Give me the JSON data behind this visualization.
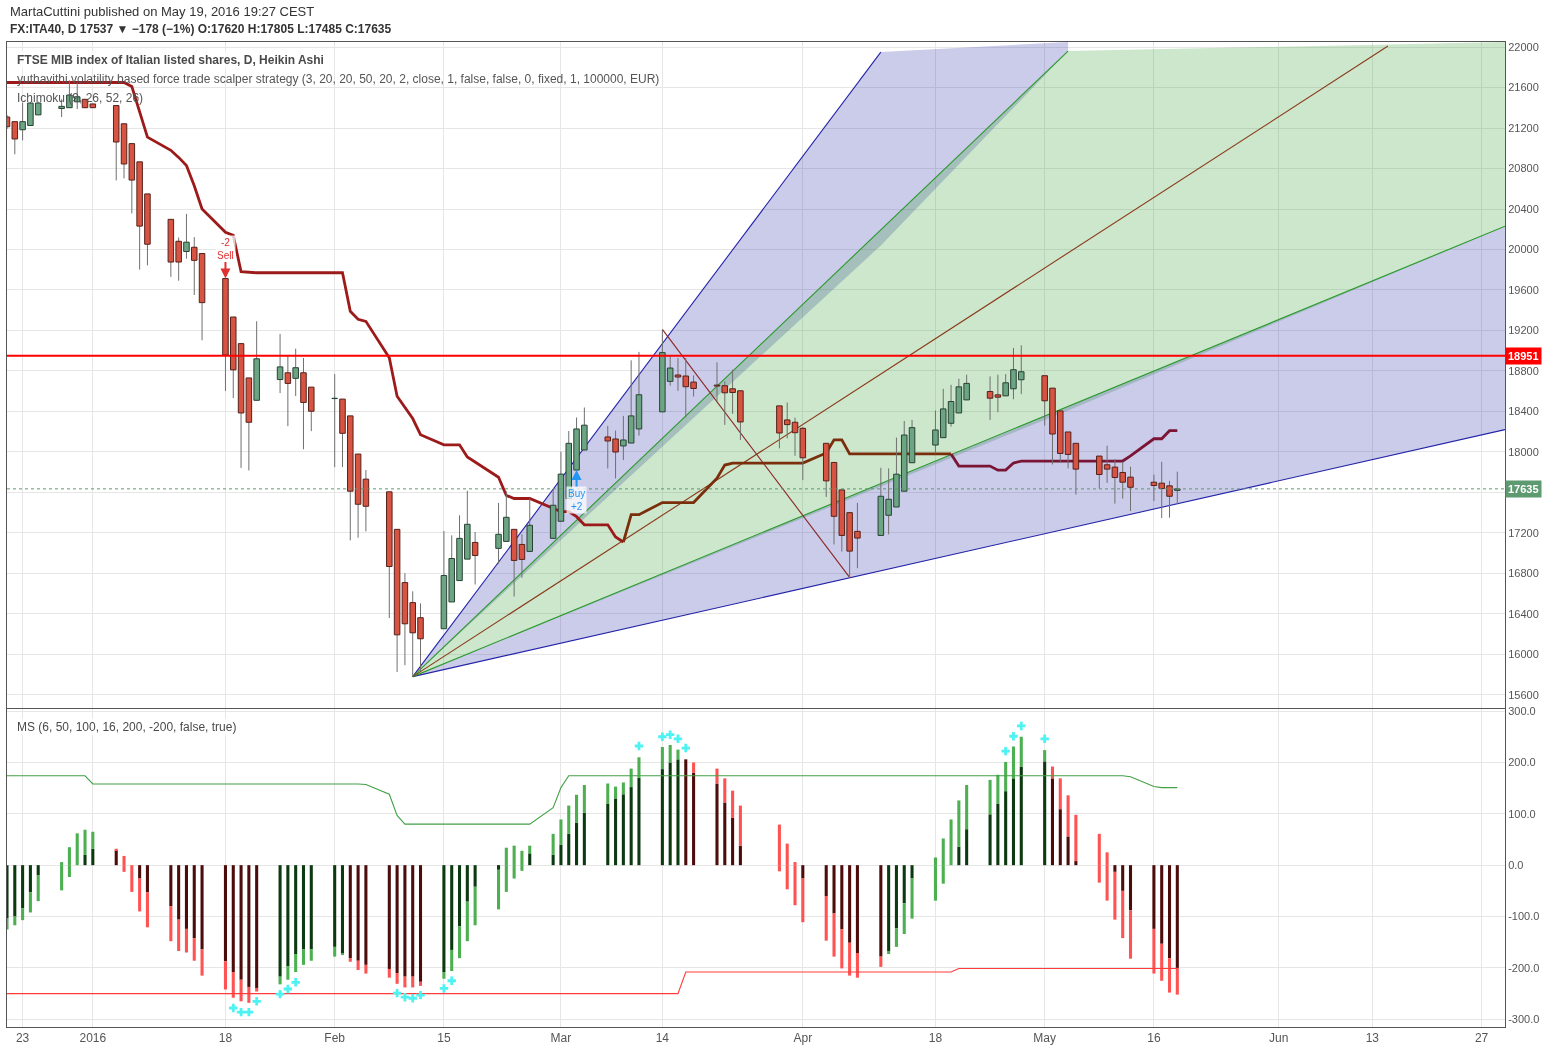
{
  "chart_data": [
    {
      "type": "candlestick",
      "title": "FTSE MIB index of Italian listed shares, D, Heikin Ashi",
      "subtitle": "FX:ITA40, D 17537 ▼ −178 (−1%) O:17620 H:17805 L:17485 C:17635",
      "annotations": [
        "MartaCuttini published on May 19, 2016 19:27 CEST",
        "yuthavithi volatility based force trade scalper strategy (3, 20, 20, 50, 20, 2, close, 1, false, false, 0, fixed, 1, 100000, EUR)",
        "Ichimoku (9, 26, 52, 26)",
        {
          "text": "-2\nSell",
          "x": "2016-01-18",
          "y": 19713
        },
        {
          "text": "Buy\n+2",
          "x": "2016-03-03",
          "y": 17821
        }
      ],
      "x": [
        "2015-12-21",
        "2015-12-22",
        "2015-12-23",
        "2015-12-24",
        "2015-12-25",
        "2015-12-28",
        "2015-12-29",
        "2015-12-30",
        "2015-12-31",
        "2016-01-01",
        "2016-01-04",
        "2016-01-05",
        "2016-01-06",
        "2016-01-07",
        "2016-01-08",
        "2016-01-11",
        "2016-01-12",
        "2016-01-13",
        "2016-01-14",
        "2016-01-15",
        "2016-01-18",
        "2016-01-19",
        "2016-01-20",
        "2016-01-21",
        "2016-01-22",
        "2016-01-25",
        "2016-01-26",
        "2016-01-27",
        "2016-01-28",
        "2016-01-29",
        "2016-02-01",
        "2016-02-02",
        "2016-02-03",
        "2016-02-04",
        "2016-02-05",
        "2016-02-08",
        "2016-02-09",
        "2016-02-10",
        "2016-02-11",
        "2016-02-12",
        "2016-02-15",
        "2016-02-16",
        "2016-02-17",
        "2016-02-18",
        "2016-02-19",
        "2016-02-22",
        "2016-02-23",
        "2016-02-24",
        "2016-02-25",
        "2016-02-26",
        "2016-02-29",
        "2016-03-01",
        "2016-03-02",
        "2016-03-03",
        "2016-03-04",
        "2016-03-07",
        "2016-03-08",
        "2016-03-09",
        "2016-03-10",
        "2016-03-11",
        "2016-03-14",
        "2016-03-15",
        "2016-03-16",
        "2016-03-17",
        "2016-03-18",
        "2016-03-21",
        "2016-03-22",
        "2016-03-23",
        "2016-03-24",
        "2016-03-29",
        "2016-03-30",
        "2016-03-31",
        "2016-04-01",
        "2016-04-04",
        "2016-04-05",
        "2016-04-06",
        "2016-04-07",
        "2016-04-08",
        "2016-04-11",
        "2016-04-12",
        "2016-04-13",
        "2016-04-14",
        "2016-04-15",
        "2016-04-18",
        "2016-04-19",
        "2016-04-20",
        "2016-04-21",
        "2016-04-22",
        "2016-04-25",
        "2016-04-26",
        "2016-04-27",
        "2016-04-28",
        "2016-04-29",
        "2016-05-02",
        "2016-05-03",
        "2016-05-04",
        "2016-05-05",
        "2016-05-06",
        "2016-05-09",
        "2016-05-10",
        "2016-05-11",
        "2016-05-12",
        "2016-05-13",
        "2016-05-16",
        "2016-05-17",
        "2016-05-18",
        "2016-05-19"
      ],
      "ohlc": [
        [
          21309,
          21330,
          21190,
          21213
        ],
        [
          21263,
          21263,
          20941,
          21092
        ],
        [
          21183,
          21451,
          21079,
          21263
        ],
        [
          21225,
          21460,
          21225,
          21447
        ],
        [
          21330,
          21460,
          21330,
          21447
        ],
        [
          21393,
          21484,
          21309,
          21414
        ],
        [
          21401,
          21672,
          21401,
          21526
        ],
        [
          21459,
          21651,
          21388,
          21509
        ],
        [
          21484,
          21484,
          21401,
          21401
        ],
        [
          21438,
          21438,
          21401,
          21401
        ],
        [
          21422,
          21422,
          20682,
          21062
        ],
        [
          21242,
          21242,
          20703,
          20845
        ],
        [
          21046,
          21046,
          20356,
          20686
        ],
        [
          20866,
          20866,
          19801,
          20231
        ],
        [
          20549,
          20549,
          19843,
          20052
        ],
        [
          20298,
          20298,
          19730,
          19876
        ],
        [
          20081,
          20118,
          19692,
          19876
        ],
        [
          19980,
          20352,
          19909,
          20072
        ],
        [
          20022,
          20122,
          19550,
          19893
        ],
        [
          19960,
          19960,
          19103,
          19475
        ],
        [
          19713,
          19713,
          18602,
          18957
        ],
        [
          19333,
          19333,
          18531,
          18811
        ],
        [
          19070,
          19070,
          17842,
          18385
        ],
        [
          18731,
          18731,
          17817,
          18293
        ],
        [
          18510,
          19291,
          18510,
          18920
        ],
        [
          18715,
          19166,
          18581,
          18840
        ],
        [
          18782,
          18957,
          18255,
          18677
        ],
        [
          18727,
          19020,
          18552,
          18832
        ],
        [
          18782,
          18928,
          18026,
          18489
        ],
        [
          18640,
          18640,
          18205,
          18402
        ],
        [
          18527,
          18769,
          17850,
          18530
        ],
        [
          18522,
          18522,
          17850,
          18184
        ],
        [
          18356,
          18356,
          17126,
          17612
        ],
        [
          17979,
          17979,
          17152,
          17483
        ],
        [
          17731,
          17821,
          17215,
          17463
        ],
        [
          17606,
          17606,
          16359,
          16868
        ],
        [
          17235,
          17235,
          15826,
          16193
        ],
        [
          16709,
          16802,
          15893,
          16302
        ],
        [
          16511,
          16623,
          15780,
          16213
        ],
        [
          16362,
          16504,
          15836,
          16154
        ],
        [
          16253,
          17219,
          16253,
          16779
        ],
        [
          16518,
          17176,
          16518,
          16947
        ],
        [
          16729,
          17374,
          16729,
          17146
        ],
        [
          16941,
          17616,
          16941,
          17285
        ],
        [
          17106,
          17209,
          16690,
          16977
        ],
        [
          17047,
          17496,
          16895,
          17186
        ],
        [
          17116,
          17612,
          17116,
          17354
        ],
        [
          17235,
          17235,
          16571,
          16928
        ],
        [
          17086,
          17186,
          16756,
          16938
        ],
        [
          17017,
          17539,
          17017,
          17275
        ],
        [
          17146,
          17629,
          17146,
          17473
        ],
        [
          17315,
          18003,
          17315,
          17781
        ],
        [
          17539,
          18207,
          17539,
          18085
        ],
        [
          17821,
          18340,
          17821,
          18227
        ],
        [
          18019,
          18439,
          18019,
          18264
        ],
        [
          18148,
          18257,
          17837,
          18108
        ],
        [
          18128,
          18211,
          17738,
          17999
        ],
        [
          18059,
          18356,
          17920,
          18118
        ],
        [
          18088,
          18905,
          18088,
          18356
        ],
        [
          18227,
          18988,
          18161,
          18565
        ],
        [
          18396,
          19209,
          18396,
          18981
        ],
        [
          18697,
          18955,
          18654,
          18829
        ],
        [
          18760,
          18928,
          18604,
          18740
        ],
        [
          18750,
          18928,
          18340,
          18644
        ],
        [
          18690,
          18756,
          18548,
          18627
        ],
        [
          18660,
          18885,
          18498,
          18651
        ],
        [
          18654,
          18697,
          18267,
          18584
        ],
        [
          18624,
          18813,
          18376,
          18587
        ],
        [
          18604,
          18604,
          18118,
          18296
        ],
        [
          18455,
          18455,
          18035,
          18187
        ],
        [
          18316,
          18488,
          18134,
          18270
        ],
        [
          18293,
          18339,
          17962,
          18190
        ],
        [
          18233,
          18247,
          17721,
          17942
        ],
        [
          18085,
          18085,
          17555,
          17714
        ],
        [
          17896,
          17896,
          17086,
          17364
        ],
        [
          17625,
          17625,
          17016,
          17175
        ],
        [
          17400,
          17400,
          16758,
          17020
        ],
        [
          17215,
          17496,
          16851,
          17149
        ],
        [
          17175,
          17843,
          17175,
          17562
        ],
        [
          17374,
          17837,
          17185,
          17532
        ],
        [
          17456,
          18141,
          17456,
          17780
        ],
        [
          17612,
          18306,
          17612,
          18167
        ],
        [
          17893,
          18316,
          17893,
          18240
        ],
        [
          18068,
          18409,
          17985,
          18217
        ],
        [
          18141,
          18624,
          18141,
          18425
        ],
        [
          18283,
          18663,
          18250,
          18498
        ],
        [
          18385,
          18723,
          18385,
          18643
        ],
        [
          18514,
          18763,
          18514,
          18677
        ],
        [
          18597,
          18746,
          18316,
          18531
        ],
        [
          18564,
          18763,
          18392,
          18541
        ],
        [
          18554,
          18769,
          18554,
          18683
        ],
        [
          18624,
          19027,
          18521,
          18812
        ],
        [
          18713,
          19053,
          18571,
          18792
        ],
        [
          18753,
          18753,
          18260,
          18505
        ],
        [
          18630,
          18630,
          17876,
          18177
        ],
        [
          18405,
          18405,
          17893,
          17985
        ],
        [
          18197,
          18197,
          17837,
          17975
        ],
        [
          18085,
          18085,
          17579,
          17830
        ],
        [
          17959,
          17959,
          17638,
          17777
        ],
        [
          17873,
          18061,
          17694,
          17830
        ],
        [
          17850,
          17929,
          17489,
          17747
        ],
        [
          17797,
          17903,
          17539,
          17701
        ],
        [
          17751,
          17853,
          17416,
          17651
        ],
        [
          17701,
          17777,
          17516,
          17668
        ],
        [
          17691,
          17902,
          17347,
          17638
        ],
        [
          17665,
          17714,
          17350,
          17562
        ],
        [
          17620,
          17805,
          17485,
          17635
        ]
      ],
      "colors": [
        "#d75442",
        "#d75442",
        "#6ba583",
        "#6ba583",
        "#6ba583",
        "#6ba583",
        "#6ba583",
        "#6ba583",
        "#d75442",
        "#d75442",
        "#d75442",
        "#d75442",
        "#d75442",
        "#d75442",
        "#d75442",
        "#d75442",
        "#d75442",
        "#6ba583",
        "#d75442",
        "#d75442",
        "#d75442",
        "#d75442",
        "#d75442",
        "#d75442",
        "#6ba583",
        "#6ba583",
        "#d75442",
        "#6ba583",
        "#d75442",
        "#d75442",
        "#6ba583",
        "#d75442",
        "#d75442",
        "#d75442",
        "#d75442",
        "#d75442",
        "#d75442",
        "#d75442",
        "#d75442",
        "#d75442",
        "#6ba583",
        "#6ba583",
        "#6ba583",
        "#6ba583",
        "#d75442",
        "#6ba583",
        "#6ba583",
        "#d75442",
        "#d75442",
        "#6ba583",
        "#6ba583",
        "#6ba583",
        "#6ba583",
        "#6ba583",
        "#6ba583",
        "#d75442",
        "#d75442",
        "#6ba583",
        "#6ba583",
        "#6ba583",
        "#6ba583",
        "#6ba583",
        "#d75442",
        "#d75442",
        "#d75442",
        "#d75442",
        "#d75442",
        "#d75442",
        "#d75442",
        "#d75442",
        "#d75442",
        "#d75442",
        "#d75442",
        "#d75442",
        "#d75442",
        "#d75442",
        "#d75442",
        "#d75442",
        "#6ba583",
        "#6ba583",
        "#6ba583",
        "#6ba583",
        "#6ba583",
        "#6ba583",
        "#6ba583",
        "#6ba583",
        "#6ba583",
        "#6ba583",
        "#d75442",
        "#d75442",
        "#6ba583",
        "#6ba583",
        "#6ba583",
        "#d75442",
        "#d75442",
        "#d75442",
        "#d75442",
        "#d75442",
        "#d75442",
        "#d75442",
        "#d75442",
        "#d75442",
        "#d75442",
        "#d75442",
        "#d75442",
        "#d75442",
        "#6ba583"
      ],
      "series": [
        {
          "type": "line",
          "color": "#2424a8",
          "x": [
            "2016-02-11",
            "2016-04-11",
            "2016-05-05"
          ],
          "values": [
            15780,
            21950,
            null
          ],
          "lower": [
            15780,
            20040,
            21960
          ],
          "upper": [
            15780,
            21950,
            22050
          ]
        },
        {
          "type": "line",
          "color": "#2a9a2a",
          "x": [
            "2016-02-11",
            "2016-05-05",
            "2016-06-30"
          ],
          "values": [
            15780,
            21960,
            null
          ],
          "lower": [
            15780,
            18410,
            20230
          ],
          "upper": [
            15780,
            21960,
            22050
          ]
        },
        {
          "type": "line",
          "color": "#2424a8",
          "x": [
            "2016-02-11",
            "2016-06-30"
          ],
          "values": [
            15780,
            18220
          ],
          "lower": [
            15780,
            18220
          ],
          "upper": [
            15780,
            20230
          ]
        },
        {
          "type": "line",
          "color": "#2a9a2a",
          "x": [
            "2016-02-11",
            "2016-06-30"
          ],
          "values": [
            15780,
            20230
          ]
        },
        {
          "type": "line",
          "color": "#8b3a1a",
          "x": [
            "2016-02-11",
            "2016-06-15"
          ],
          "values": [
            15780,
            22010
          ]
        },
        {
          "type": "line",
          "color": "#8b2525",
          "x": [
            "2016-03-14",
            "2016-04-07"
          ],
          "values": [
            19210,
            16760
          ]
        },
        {
          "type": "line",
          "color": "#9c1a1a",
          "x": [
            "2015-12-21",
            "2016-01-05",
            "2016-01-06",
            "2016-01-08",
            "2016-01-11",
            "2016-01-12",
            "2016-01-13",
            "2016-01-14",
            "2016-01-15",
            "2016-01-18",
            "2016-01-19",
            "2016-01-20",
            "2016-01-22",
            "2016-02-02",
            "2016-02-03",
            "2016-02-04",
            "2016-02-05",
            "2016-02-08",
            "2016-02-09",
            "2016-02-11",
            "2016-02-12",
            "2016-02-15",
            "2016-02-17",
            "2016-02-18",
            "2016-02-22",
            "2016-02-23",
            "2016-02-24",
            "2016-02-26",
            "2016-03-01",
            "2016-03-02",
            "2016-03-03",
            "2016-03-04",
            "2016-03-07",
            "2016-03-08",
            "2016-03-09"
          ],
          "values": [
            21650,
            21650,
            21610,
            21110,
            20980,
            20910,
            20830,
            20630,
            20400,
            20170,
            20140,
            19780,
            19770,
            19770,
            19390,
            19310,
            19290,
            18930,
            18550,
            18330,
            18170,
            18070,
            18070,
            17950,
            17750,
            17570,
            17540,
            17540,
            17410,
            17410,
            17360,
            17280,
            17280,
            17160,
            17110
          ]
        },
        {
          "type": "line",
          "color": "#7a2e0c",
          "x": [
            "2016-03-09",
            "2016-03-10",
            "2016-03-11",
            "2016-03-14",
            "2016-03-18",
            "2016-03-21",
            "2016-03-22",
            "2016-03-23",
            "2016-04-01",
            "2016-04-04",
            "2016-04-05",
            "2016-04-06",
            "2016-04-07",
            "2016-04-20"
          ],
          "values": [
            17110,
            17380,
            17380,
            17500,
            17500,
            17740,
            17870,
            17890,
            17890,
            17990,
            18120,
            18120,
            17980,
            17980
          ]
        },
        {
          "type": "line",
          "color": "#7a1535",
          "x": [
            "2016-04-20",
            "2016-04-21",
            "2016-04-25",
            "2016-04-26",
            "2016-04-27",
            "2016-04-28",
            "2016-04-29",
            "2016-05-12",
            "2016-05-13",
            "2016-05-16",
            "2016-05-17",
            "2016-05-18",
            "2016-05-19"
          ],
          "values": [
            17980,
            17860,
            17860,
            17820,
            17820,
            17890,
            17910,
            17910,
            17960,
            18130,
            18130,
            18210,
            18210
          ]
        }
      ],
      "ref_lines": [
        {
          "axis": "y",
          "value": 18951,
          "label": "18951",
          "color": "#ff0000",
          "line_style": "solid"
        },
        {
          "axis": "y",
          "value": 17635,
          "label": "17635",
          "color": "#5e9a70",
          "line_style": "dotted"
        }
      ],
      "xlim": [
        "2015-12-21",
        "2016-06-30"
      ],
      "xticks": [
        {
          "value": "2015-12-23",
          "label": null
        },
        {
          "value": "2016-01-01",
          "label": null
        },
        {
          "value": "2016-01-18",
          "label": null
        },
        {
          "value": "2016-02-01",
          "label": null
        },
        {
          "value": "2016-02-15",
          "label": null
        },
        {
          "value": "2016-03-01",
          "label": null
        },
        {
          "value": "2016-03-14",
          "label": null
        },
        {
          "value": "2016-04-01",
          "label": null
        },
        {
          "value": "2016-04-18",
          "label": null
        },
        {
          "value": "2016-05-02",
          "label": null
        },
        {
          "value": "2016-05-16",
          "label": null
        },
        {
          "value": "2016-06-01",
          "label": null
        },
        {
          "value": "2016-06-13",
          "label": null
        },
        {
          "value": "2016-06-27",
          "label": null
        }
      ],
      "ylim": [
        15470,
        22050
      ],
      "yticks": [
        15600,
        16000,
        16400,
        16800,
        17200,
        {
          "value": 17600,
          "label": null
        },
        18000,
        18400,
        18800,
        19200,
        19600,
        20000,
        20400,
        20800,
        21200,
        21600,
        22000
      ],
      "tick_labels": "y",
      "grid": true
    },
    {
      "type": "bar",
      "title": "MS (6, 50, 100, 16, 200, -200, false, true)",
      "x": [
        "2015-12-21",
        "2015-12-22",
        "2015-12-23",
        "2015-12-24",
        "2015-12-25",
        "2015-12-28",
        "2015-12-29",
        "2015-12-30",
        "2015-12-31",
        "2016-01-01",
        "2016-01-04",
        "2016-01-05",
        "2016-01-06",
        "2016-01-07",
        "2016-01-08",
        "2016-01-11",
        "2016-01-12",
        "2016-01-13",
        "2016-01-14",
        "2016-01-15",
        "2016-01-18",
        "2016-01-19",
        "2016-01-20",
        "2016-01-21",
        "2016-01-22",
        "2016-01-25",
        "2016-01-26",
        "2016-01-27",
        "2016-01-28",
        "2016-01-29",
        "2016-02-01",
        "2016-02-02",
        "2016-02-03",
        "2016-02-04",
        "2016-02-05",
        "2016-02-08",
        "2016-02-09",
        "2016-02-10",
        "2016-02-11",
        "2016-02-12",
        "2016-02-15",
        "2016-02-16",
        "2016-02-17",
        "2016-02-18",
        "2016-02-19",
        "2016-02-22",
        "2016-02-23",
        "2016-02-24",
        "2016-02-25",
        "2016-02-26",
        "2016-02-29",
        "2016-03-01",
        "2016-03-02",
        "2016-03-03",
        "2016-03-04",
        "2016-03-07",
        "2016-03-08",
        "2016-03-09",
        "2016-03-10",
        "2016-03-11",
        "2016-03-14",
        "2016-03-15",
        "2016-03-16",
        "2016-03-17",
        "2016-03-18",
        "2016-03-21",
        "2016-03-22",
        "2016-03-23",
        "2016-03-24",
        "2016-03-29",
        "2016-03-30",
        "2016-03-31",
        "2016-04-01",
        "2016-04-04",
        "2016-04-05",
        "2016-04-06",
        "2016-04-07",
        "2016-04-08",
        "2016-04-11",
        "2016-04-12",
        "2016-04-13",
        "2016-04-14",
        "2016-04-15",
        "2016-04-18",
        "2016-04-19",
        "2016-04-20",
        "2016-04-21",
        "2016-04-22",
        "2016-04-25",
        "2016-04-26",
        "2016-04-27",
        "2016-04-28",
        "2016-04-29",
        "2016-05-02",
        "2016-05-03",
        "2016-05-04",
        "2016-05-05",
        "2016-05-06",
        "2016-05-09",
        "2016-05-10",
        "2016-05-11",
        "2016-05-12",
        "2016-05-13",
        "2016-05-16",
        "2016-05-17",
        "2016-05-18",
        "2016-05-19"
      ],
      "series": [
        {
          "type": "bar",
          "values": [
            -103,
            -100,
            -84,
            -53,
            -20,
            6,
            35,
            62,
            20,
            32,
            29,
            18,
            null,
            -26,
            -53,
            -80,
            -106,
            -124,
            -142,
            -164,
            -187,
            -208,
            -223,
            -237,
            -239,
            -217,
            -197,
            -173,
            -164,
            -164,
            -159,
            -171,
            -181,
            -186,
            -194,
            -202,
            -210,
            -217,
            -217,
            -227,
            -208,
            -165,
            -119,
            -71,
            -42,
            -9,
            34,
            38,
            28,
            23,
            20,
            40,
            61,
            83,
            102,
            120,
            130,
            138,
            152,
            170,
            187,
            200,
            206,
            206,
            180,
            159,
            122,
            92,
            38,
            79,
            42,
            6,
            -26,
            -60,
            -94,
            -125,
            -151,
            -171,
            -178,
            -167,
            -123,
            -74,
            -26,
            15,
            52,
            6,
            36,
            70,
            99,
            120,
            144,
            169,
            192,
            202,
            169,
            109,
            56,
            8,
            61,
            25,
            -13,
            -50,
            -88,
            -124,
            -153,
            -181,
            -200
          ],
          "colors": [
            "#0c3a10",
            "#0c3a10",
            "#0c3a10",
            "#0c3a10",
            "#0c3a10",
            "#4caf50",
            "#4caf50",
            "#4caf50",
            "#0c3a10",
            "#0c3a10",
            "#4d0c0c",
            "#ff5252",
            "#ff5252",
            "#4d0c0c",
            "#4d0c0c",
            "#4d0c0c",
            "#4d0c0c",
            "#4d0c0c",
            "#4d0c0c",
            "#4d0c0c",
            "#4d0c0c",
            "#4d0c0c",
            "#4d0c0c",
            "#4d0c0c",
            "#4d0c0c",
            "#0c3a10",
            "#0c3a10",
            "#0c3a10",
            "#0c3a10",
            "#0c3a10",
            "#0c3a10",
            "#0c3a10",
            "#4d0c0c",
            "#4d0c0c",
            "#4d0c0c",
            "#4d0c0c",
            "#4d0c0c",
            "#4d0c0c",
            "#4d0c0c",
            "#4d0c0c",
            "#0c3a10",
            "#0c3a10",
            "#0c3a10",
            "#0c3a10",
            "#0c3a10",
            "#0c3a10",
            "#4caf50",
            "#4caf50",
            "#4caf50",
            "#0c3a10",
            "#0c3a10",
            "#0c3a10",
            "#0c3a10",
            "#0c3a10",
            "#0c3a10",
            "#0c3a10",
            "#0c3a10",
            "#0c3a10",
            "#0c3a10",
            "#0c3a10",
            "#0c3a10",
            "#0c3a10",
            "#0c3a10",
            "#4d0c0c",
            "#4d0c0c",
            "#4d0c0c",
            "#4d0c0c",
            "#4d0c0c",
            "#4d0c0c",
            "#ff5252",
            "#ff5252",
            "#ff5252",
            "#4d0c0c",
            "#4d0c0c",
            "#4d0c0c",
            "#4d0c0c",
            "#4d0c0c",
            "#4d0c0c",
            "#4d0c0c",
            "#0c3a10",
            "#0c3a10",
            "#0c3a10",
            "#0c3a10",
            "#4caf50",
            "#4caf50",
            "#4caf50",
            "#0c3a10",
            "#0c3a10",
            "#0c3a10",
            "#0c3a10",
            "#0c3a10",
            "#0c3a10",
            "#0c3a10",
            "#0c3a10",
            "#4d0c0c",
            "#4d0c0c",
            "#4d0c0c",
            "#4d0c0c",
            "#ff5252",
            "#ff5252",
            "#4d0c0c",
            "#4d0c0c",
            "#4d0c0c",
            "#4d0c0c",
            "#4d0c0c",
            "#4d0c0c",
            "#4d0c0c"
          ]
        },
        {
          "type": "bar",
          "values": [
            -22,
            -17,
            -23,
            -39,
            -50,
            -49,
            -23,
            null,
            49,
            33,
            3,
            -13,
            -52,
            -64,
            -68,
            -68,
            -61,
            -46,
            -44,
            -51,
            -55,
            -50,
            -42,
            -31,
            -7,
            -15,
            -26,
            -35,
            -30,
            -22,
            -19,
            -4,
            -7,
            -18,
            -17,
            -17,
            -21,
            -21,
            -21,
            -8,
            -13,
            -41,
            -62,
            -77,
            -75,
            -77,
            -52,
            -26,
            -11,
            15,
            41,
            49,
            55,
            54,
            54,
            39,
            23,
            23,
            36,
            40,
            43,
            34,
            19,
            null,
            20,
            29,
            47,
            53,
            78,
            -12,
            -47,
            -78,
            -85,
            -87,
            -84,
            -76,
            -64,
            -48,
            -20,
            -6,
            -36,
            -60,
            -78,
            -69,
            -36,
            83,
            90,
            86,
            67,
            56,
            57,
            62,
            58,
            22,
            23,
            60,
            80,
            90,
            -34,
            -69,
            -93,
            -92,
            -94,
            -87,
            -72,
            -67,
            -52
          ],
          "colors": [
            "#4caf50",
            "#4caf50",
            "#4caf50",
            "#4caf50",
            "#4caf50",
            "#4caf50",
            "#4caf50",
            "#4caf50",
            "#4caf50",
            "#4caf50",
            "#ff5252",
            "#ff5252",
            "#ff5252",
            "#ff5252",
            "#ff5252",
            "#ff5252",
            "#ff5252",
            "#ff5252",
            "#ff5252",
            "#ff5252",
            "#ff5252",
            "#ff5252",
            "#ff5252",
            "#ff5252",
            "#ff5252",
            "#4caf50",
            "#4caf50",
            "#4caf50",
            "#4caf50",
            "#4caf50",
            "#4caf50",
            "#4caf50",
            "#ff5252",
            "#ff5252",
            "#ff5252",
            "#ff5252",
            "#ff5252",
            "#ff5252",
            "#ff5252",
            "#ff5252",
            "#4caf50",
            "#4caf50",
            "#4caf50",
            "#4caf50",
            "#4caf50",
            "#4caf50",
            "#4caf50",
            "#4caf50",
            "#4caf50",
            "#4caf50",
            "#4caf50",
            "#4caf50",
            "#4caf50",
            "#4caf50",
            "#4caf50",
            "#4caf50",
            "#4caf50",
            "#4caf50",
            "#4caf50",
            "#4caf50",
            "#4caf50",
            "#4caf50",
            "#4caf50",
            "#ff5252",
            "#ff5252",
            "#ff5252",
            "#ff5252",
            "#ff5252",
            "#ff5252",
            "#ff5252",
            "#ff5252",
            "#ff5252",
            "#ff5252",
            "#ff5252",
            "#ff5252",
            "#ff5252",
            "#ff5252",
            "#ff5252",
            "#ff5252",
            "#4caf50",
            "#4caf50",
            "#4caf50",
            "#4caf50",
            "#4caf50",
            "#4caf50",
            "#4caf50",
            "#4caf50",
            "#4caf50",
            "#4caf50",
            "#4caf50",
            "#4caf50",
            "#4caf50",
            "#4caf50",
            "#4caf50",
            "#ff5252",
            "#ff5252",
            "#ff5252",
            "#ff5252",
            "#ff5252",
            "#ff5252",
            "#ff5252",
            "#ff5252",
            "#ff5252",
            "#ff5252",
            "#ff5252",
            "#ff5252",
            "#ff5252"
          ]
        },
        {
          "type": "line",
          "color": "#43a047",
          "x": [
            "2015-12-21",
            "2015-12-31",
            "2016-01-01",
            "2016-02-04",
            "2016-02-05",
            "2016-02-08",
            "2016-02-09",
            "2016-02-10",
            "2016-02-26",
            "2016-02-29",
            "2016-03-01",
            "2016-03-02",
            "2016-05-12",
            "2016-05-13",
            "2016-05-16",
            "2016-05-17",
            "2016-05-19"
          ],
          "values": [
            174,
            174,
            158,
            158,
            157,
            138,
            97,
            80,
            80,
            112,
            151,
            174,
            174,
            172,
            153,
            151,
            151
          ]
        },
        {
          "type": "line",
          "color": "#ff3b3b",
          "x": [
            "2015-12-21",
            "2016-03-16",
            "2016-03-17",
            "2016-04-20",
            "2016-04-21",
            "2016-05-19"
          ],
          "values": [
            -250,
            -250,
            -208,
            -208,
            -201,
            -201
          ]
        },
        {
          "type": "scatter",
          "color": "#4df2f2",
          "marker": "cross",
          "x": [
            "2016-01-19",
            "2016-01-20",
            "2016-01-21",
            "2016-01-22",
            "2016-01-25",
            "2016-01-26",
            "2016-01-27",
            "2016-02-09",
            "2016-02-10",
            "2016-02-11",
            "2016-02-12",
            "2016-02-15",
            "2016-02-16",
            "2016-03-11",
            "2016-03-14",
            "2016-03-15",
            "2016-03-16",
            "2016-03-17",
            "2016-04-27",
            "2016-04-28",
            "2016-04-29",
            "2016-05-02"
          ],
          "values": [
            -278,
            -286,
            -286,
            -265,
            -251,
            -241,
            -228,
            -249,
            -257,
            -259,
            -253,
            -240,
            -225,
            232,
            250,
            254,
            246,
            228,
            222,
            251,
            271,
            246
          ]
        }
      ],
      "stacked": true,
      "xlim": [
        "2015-12-21",
        "2016-06-30"
      ],
      "xticks": [
        {
          "value": "2015-12-23",
          "label": "23"
        },
        {
          "value": "2016-01-01",
          "label": "2016"
        },
        {
          "value": "2016-01-18",
          "label": "18"
        },
        {
          "value": "2016-02-01",
          "label": "Feb"
        },
        {
          "value": "2016-02-15",
          "label": "15"
        },
        {
          "value": "2016-03-01",
          "label": "Mar"
        },
        {
          "value": "2016-03-14",
          "label": "14"
        },
        {
          "value": "2016-04-01",
          "label": "Apr"
        },
        {
          "value": "2016-04-18",
          "label": "18"
        },
        {
          "value": "2016-05-02",
          "label": "May"
        },
        {
          "value": "2016-05-16",
          "label": "16"
        },
        {
          "value": "2016-06-01",
          "label": "Jun"
        },
        {
          "value": "2016-06-13",
          "label": "13"
        },
        {
          "value": "2016-06-27",
          "label": "27"
        }
      ],
      "ylim": [
        -315,
        304
      ],
      "yticks": [
        {
          "value": 300,
          "label": "300.0"
        },
        {
          "value": 200,
          "label": "200.0"
        },
        {
          "value": 100,
          "label": "100.0"
        },
        {
          "value": 0,
          "label": "0.0"
        },
        {
          "value": -100,
          "label": "-100.0"
        },
        {
          "value": -200,
          "label": "-200.0"
        },
        {
          "value": -300,
          "label": "-300.0"
        }
      ],
      "grid": true
    }
  ]
}
